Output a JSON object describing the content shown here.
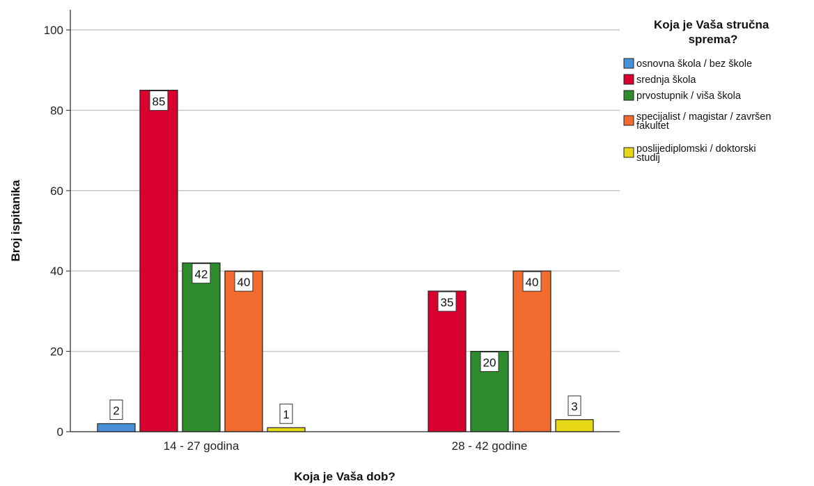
{
  "chart_data": {
    "type": "bar",
    "xlabel": "Koja je Vaša dob?",
    "ylabel": "Broj ispitanika",
    "ylim": [
      0,
      100
    ],
    "yticks": [
      0,
      20,
      40,
      60,
      80,
      100
    ],
    "grid": true,
    "legend_position": "right",
    "legend_title": "Koja je Vaša stručna sprema?",
    "categories": [
      "14 - 27 godina",
      "28 - 42 godine"
    ],
    "series": [
      {
        "name": "osnovna škola / bez škole",
        "color": "#4a90d9",
        "values": [
          2,
          null
        ]
      },
      {
        "name": "srednja škola",
        "color": "#d8002f",
        "values": [
          85,
          35
        ]
      },
      {
        "name": "prvostupnik / viša škola",
        "color": "#2e8b2e",
        "values": [
          42,
          20
        ]
      },
      {
        "name": "specijalist / magistar / završen fakultet",
        "color": "#f26b2f",
        "values": [
          40,
          40
        ]
      },
      {
        "name": "poslijediplomski / doktorski studij",
        "color": "#e6d817",
        "values": [
          1,
          3
        ]
      }
    ]
  }
}
